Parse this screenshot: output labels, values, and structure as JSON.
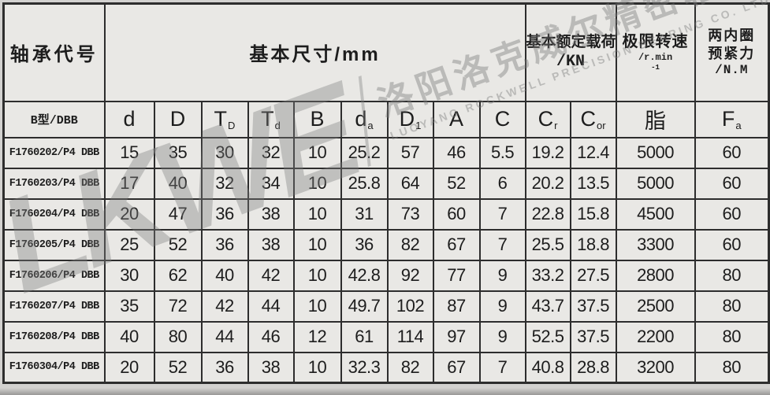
{
  "table": {
    "group_headers": {
      "bearing_code": "轴承代号",
      "dimensions": "基本尺寸/mm",
      "load_line1": "基本额定载荷",
      "load_line2": "/KN",
      "speed_line1": "极限转速",
      "speed_unit_base": "/r.min",
      "speed_unit_sup": "-1",
      "preload_line1": "两内圈",
      "preload_line2": "预紧力",
      "preload_line3": "/N.M"
    },
    "sub_headers": {
      "type": "B型/DBB",
      "columns": [
        {
          "key": "d",
          "main": "d",
          "sub": ""
        },
        {
          "key": "d-big",
          "main": "D",
          "sub": ""
        },
        {
          "key": "t-upper-d",
          "main": "T",
          "sub": "D"
        },
        {
          "key": "t-lower-d",
          "main": "T",
          "sub": "d"
        },
        {
          "key": "b",
          "main": "B",
          "sub": ""
        },
        {
          "key": "d-a",
          "main": "d",
          "sub": "a"
        },
        {
          "key": "d-1",
          "main": "D",
          "sub": "1"
        },
        {
          "key": "a",
          "main": "A",
          "sub": ""
        },
        {
          "key": "c",
          "main": "C",
          "sub": ""
        },
        {
          "key": "c-r",
          "main": "C",
          "sub": "r"
        },
        {
          "key": "c-or",
          "main": "C",
          "sub": "or"
        },
        {
          "key": "grease",
          "main": "脂",
          "sub": ""
        },
        {
          "key": "f-a",
          "main": "F",
          "sub": "a"
        }
      ]
    },
    "rows": [
      {
        "code": "F1760202/P4 DBB",
        "values": [
          "15",
          "35",
          "30",
          "32",
          "10",
          "25.2",
          "57",
          "46",
          "5.5",
          "19.2",
          "12.4",
          "5000",
          "60"
        ]
      },
      {
        "code": "F1760203/P4 DBB",
        "values": [
          "17",
          "40",
          "32",
          "34",
          "10",
          "25.8",
          "64",
          "52",
          "6",
          "20.2",
          "13.5",
          "5000",
          "60"
        ]
      },
      {
        "code": "F1760204/P4 DBB",
        "values": [
          "20",
          "47",
          "36",
          "38",
          "10",
          "31",
          "73",
          "60",
          "7",
          "22.8",
          "15.8",
          "4500",
          "60"
        ]
      },
      {
        "code": "F1760205/P4 DBB",
        "values": [
          "25",
          "52",
          "36",
          "38",
          "10",
          "36",
          "82",
          "67",
          "7",
          "25.5",
          "18.8",
          "3300",
          "60"
        ]
      },
      {
        "code": "F1760206/P4 DBB",
        "values": [
          "30",
          "62",
          "40",
          "42",
          "10",
          "42.8",
          "92",
          "77",
          "9",
          "33.2",
          "27.5",
          "2800",
          "80"
        ]
      },
      {
        "code": "F1760207/P4 DBB",
        "values": [
          "35",
          "72",
          "42",
          "44",
          "10",
          "49.7",
          "102",
          "87",
          "9",
          "43.7",
          "37.5",
          "2500",
          "80"
        ]
      },
      {
        "code": "F1760208/P4 DBB",
        "values": [
          "40",
          "80",
          "44",
          "46",
          "12",
          "61",
          "114",
          "97",
          "9",
          "52.5",
          "37.5",
          "2200",
          "80"
        ]
      },
      {
        "code": "F1760304/P4 DBB",
        "values": [
          "20",
          "52",
          "36",
          "38",
          "10",
          "32.3",
          "82",
          "67",
          "7",
          "40.8",
          "28.8",
          "3200",
          "80"
        ]
      }
    ]
  },
  "watermark": {
    "logo": "LKWE",
    "company_cn": "洛阳洛克威尔精密轴承有限公司",
    "company_en": "LUOYANG ROCKWELL PRECISION BEARING CO. LTD"
  },
  "colors": {
    "cell_bg": "#e9e8e5",
    "border": "#2d2d2d",
    "page_bg": "#d3d2d0",
    "watermark_gray": "#7d7d7d"
  }
}
